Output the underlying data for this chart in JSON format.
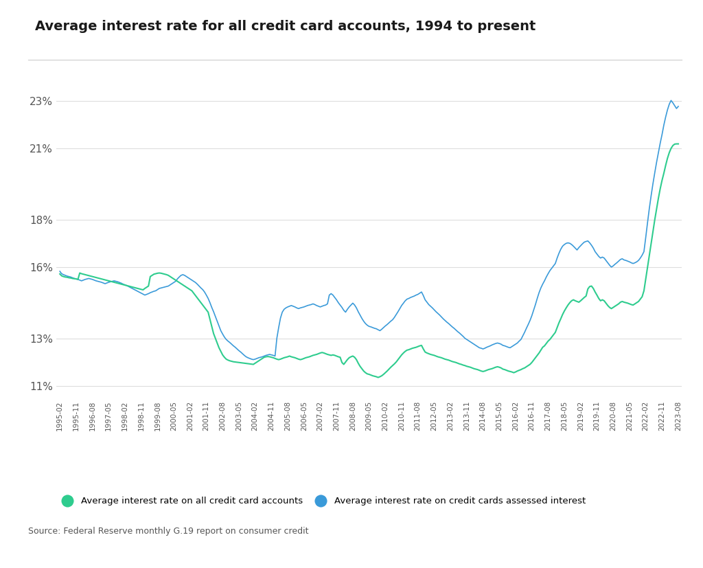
{
  "title": "Average interest rate for all credit card accounts, 1994 to present",
  "source_text": "Source: Federal Reserve monthly G.19 report on consumer credit",
  "legend_label_green": "Average interest rate on all credit card accounts",
  "legend_label_blue": "Average interest rate on credit cards assessed interest",
  "color_green": "#2ecc8e",
  "color_blue": "#3a9ad9",
  "background_color": "#ffffff",
  "ylim": [
    10.5,
    24.5
  ],
  "yticks": [
    11,
    13,
    16,
    18,
    21,
    23
  ],
  "ytick_labels": [
    "11%",
    "13%",
    "16%",
    "18%",
    "21%",
    "23%"
  ],
  "x_labels": [
    "1995-02",
    "1995-11",
    "1996-08",
    "1997-05",
    "1998-02",
    "1998-11",
    "1999-08",
    "2000-05",
    "2001-02",
    "2001-11",
    "2002-08",
    "2003-05",
    "2004-02",
    "2004-11",
    "2005-08",
    "2006-05",
    "2007-02",
    "2007-11",
    "2008-08",
    "2009-05",
    "2010-02",
    "2010-11",
    "2011-08",
    "2012-05",
    "2013-02",
    "2013-11",
    "2014-08",
    "2015-05",
    "2016-02",
    "2016-11",
    "2017-08",
    "2018-05",
    "2019-02",
    "2019-11",
    "2020-08",
    "2021-05",
    "2022-02",
    "2022-11",
    "2023-08"
  ],
  "all_accts_months": [
    15.71,
    15.63,
    15.6,
    15.58,
    15.57,
    15.55,
    15.54,
    15.52,
    15.51,
    15.5,
    15.48,
    15.75,
    15.72,
    15.7,
    15.68,
    15.66,
    15.64,
    15.62,
    15.6,
    15.58,
    15.56,
    15.54,
    15.52,
    15.5,
    15.48,
    15.46,
    15.44,
    15.42,
    15.4,
    15.38,
    15.36,
    15.34,
    15.32,
    15.3,
    15.28,
    15.26,
    15.24,
    15.22,
    15.2,
    15.18,
    15.16,
    15.14,
    15.12,
    15.1,
    15.08,
    15.06,
    15.04,
    15.1,
    15.15,
    15.2,
    15.6,
    15.65,
    15.7,
    15.72,
    15.74,
    15.75,
    15.74,
    15.72,
    15.7,
    15.68,
    15.65,
    15.6,
    15.55,
    15.5,
    15.45,
    15.4,
    15.35,
    15.3,
    15.25,
    15.2,
    15.15,
    15.1,
    15.05,
    15.0,
    14.9,
    14.8,
    14.7,
    14.6,
    14.5,
    14.4,
    14.3,
    14.2,
    14.1,
    13.8,
    13.5,
    13.2,
    13.0,
    12.8,
    12.6,
    12.45,
    12.3,
    12.2,
    12.12,
    12.08,
    12.05,
    12.03,
    12.01,
    12.0,
    11.99,
    11.98,
    11.97,
    11.96,
    11.95,
    11.94,
    11.93,
    11.92,
    11.91,
    11.9,
    11.95,
    12.0,
    12.05,
    12.1,
    12.15,
    12.2,
    12.22,
    12.23,
    12.22,
    12.2,
    12.18,
    12.15,
    12.12,
    12.1,
    12.12,
    12.15,
    12.18,
    12.2,
    12.22,
    12.25,
    12.22,
    12.2,
    12.18,
    12.15,
    12.12,
    12.1,
    12.12,
    12.15,
    12.18,
    12.2,
    12.22,
    12.25,
    12.28,
    12.3,
    12.32,
    12.35,
    12.38,
    12.4,
    12.38,
    12.35,
    12.32,
    12.3,
    12.28,
    12.3,
    12.28,
    12.25,
    12.22,
    12.2,
    11.98,
    11.9,
    12.0,
    12.1,
    12.18,
    12.22,
    12.25,
    12.2,
    12.1,
    11.95,
    11.82,
    11.72,
    11.62,
    11.55,
    11.5,
    11.48,
    11.45,
    11.42,
    11.4,
    11.38,
    11.35,
    11.38,
    11.42,
    11.48,
    11.55,
    11.62,
    11.7,
    11.78,
    11.85,
    11.92,
    12.0,
    12.1,
    12.2,
    12.3,
    12.38,
    12.45,
    12.5,
    12.52,
    12.55,
    12.58,
    12.6,
    12.62,
    12.65,
    12.68,
    12.7,
    12.55,
    12.42,
    12.38,
    12.35,
    12.32,
    12.3,
    12.28,
    12.25,
    12.22,
    12.2,
    12.18,
    12.15,
    12.12,
    12.1,
    12.08,
    12.05,
    12.02,
    12.0,
    11.98,
    11.95,
    11.92,
    11.9,
    11.87,
    11.85,
    11.82,
    11.8,
    11.78,
    11.75,
    11.72,
    11.7,
    11.68,
    11.65,
    11.62,
    11.6,
    11.62,
    11.65,
    11.68,
    11.7,
    11.72,
    11.75,
    11.78,
    11.8,
    11.78,
    11.75,
    11.7,
    11.68,
    11.65,
    11.62,
    11.6,
    11.58,
    11.55,
    11.58,
    11.62,
    11.65,
    11.68,
    11.72,
    11.75,
    11.8,
    11.85,
    11.9,
    11.98,
    12.08,
    12.18,
    12.28,
    12.38,
    12.5,
    12.62,
    12.68,
    12.78,
    12.88,
    12.95,
    13.05,
    13.15,
    13.25,
    13.45,
    13.65,
    13.82,
    14.0,
    14.15,
    14.28,
    14.4,
    14.5,
    14.58,
    14.62,
    14.58,
    14.55,
    14.52,
    14.58,
    14.65,
    14.72,
    14.78,
    15.08,
    15.18,
    15.2,
    15.1,
    14.95,
    14.82,
    14.68,
    14.58,
    14.62,
    14.58,
    14.48,
    14.38,
    14.3,
    14.25,
    14.3,
    14.35,
    14.4,
    14.45,
    14.52,
    14.55,
    14.52,
    14.5,
    14.48,
    14.45,
    14.42,
    14.4,
    14.45,
    14.5,
    14.55,
    14.65,
    14.75,
    15.0,
    15.5,
    16.0,
    16.5,
    17.0,
    17.5,
    18.0,
    18.45,
    18.9,
    19.3,
    19.65,
    19.95,
    20.28,
    20.58,
    20.82,
    21.0,
    21.12,
    21.18,
    21.19,
    21.19
  ],
  "assessed_months": [
    15.82,
    15.72,
    15.68,
    15.65,
    15.62,
    15.6,
    15.58,
    15.55,
    15.52,
    15.5,
    15.48,
    15.45,
    15.42,
    15.45,
    15.48,
    15.5,
    15.52,
    15.5,
    15.48,
    15.45,
    15.42,
    15.4,
    15.38,
    15.36,
    15.33,
    15.3,
    15.33,
    15.36,
    15.38,
    15.4,
    15.42,
    15.4,
    15.38,
    15.35,
    15.32,
    15.28,
    15.25,
    15.22,
    15.18,
    15.14,
    15.1,
    15.06,
    15.02,
    14.98,
    14.94,
    14.9,
    14.86,
    14.82,
    14.85,
    14.88,
    14.92,
    14.95,
    14.98,
    15.0,
    15.05,
    15.1,
    15.12,
    15.14,
    15.16,
    15.18,
    15.2,
    15.25,
    15.3,
    15.35,
    15.4,
    15.5,
    15.58,
    15.65,
    15.68,
    15.65,
    15.6,
    15.55,
    15.5,
    15.45,
    15.4,
    15.35,
    15.28,
    15.2,
    15.12,
    15.05,
    14.95,
    14.82,
    14.68,
    14.5,
    14.3,
    14.12,
    13.92,
    13.72,
    13.52,
    13.32,
    13.18,
    13.05,
    12.95,
    12.88,
    12.82,
    12.75,
    12.68,
    12.62,
    12.55,
    12.48,
    12.42,
    12.35,
    12.28,
    12.22,
    12.18,
    12.15,
    12.12,
    12.1,
    12.12,
    12.15,
    12.18,
    12.2,
    12.22,
    12.25,
    12.28,
    12.3,
    12.32,
    12.3,
    12.28,
    12.25,
    13.0,
    13.45,
    13.85,
    14.1,
    14.22,
    14.28,
    14.32,
    14.35,
    14.38,
    14.35,
    14.32,
    14.28,
    14.25,
    14.28,
    14.3,
    14.32,
    14.35,
    14.38,
    14.4,
    14.42,
    14.45,
    14.42,
    14.38,
    14.35,
    14.32,
    14.35,
    14.38,
    14.4,
    14.45,
    14.82,
    14.88,
    14.82,
    14.72,
    14.62,
    14.5,
    14.4,
    14.3,
    14.18,
    14.1,
    14.22,
    14.32,
    14.4,
    14.48,
    14.4,
    14.28,
    14.12,
    13.98,
    13.84,
    13.72,
    13.62,
    13.55,
    13.5,
    13.48,
    13.45,
    13.42,
    13.4,
    13.36,
    13.32,
    13.38,
    13.45,
    13.52,
    13.58,
    13.65,
    13.72,
    13.78,
    13.88,
    14.0,
    14.12,
    14.25,
    14.38,
    14.48,
    14.58,
    14.65,
    14.68,
    14.72,
    14.75,
    14.78,
    14.82,
    14.85,
    14.9,
    14.95,
    14.8,
    14.62,
    14.52,
    14.42,
    14.35,
    14.28,
    14.2,
    14.12,
    14.05,
    13.98,
    13.9,
    13.82,
    13.75,
    13.68,
    13.62,
    13.55,
    13.48,
    13.42,
    13.35,
    13.28,
    13.22,
    13.15,
    13.08,
    13.0,
    12.95,
    12.9,
    12.85,
    12.8,
    12.75,
    12.7,
    12.65,
    12.6,
    12.58,
    12.55,
    12.58,
    12.62,
    12.65,
    12.68,
    12.72,
    12.75,
    12.78,
    12.8,
    12.78,
    12.75,
    12.7,
    12.68,
    12.65,
    12.62,
    12.6,
    12.65,
    12.7,
    12.75,
    12.8,
    12.88,
    12.95,
    13.1,
    13.25,
    13.42,
    13.58,
    13.75,
    13.95,
    14.18,
    14.42,
    14.68,
    14.92,
    15.12,
    15.28,
    15.42,
    15.58,
    15.72,
    15.85,
    15.95,
    16.05,
    16.15,
    16.38,
    16.58,
    16.75,
    16.88,
    16.95,
    17.0,
    17.02,
    17.0,
    16.95,
    16.88,
    16.8,
    16.72,
    16.82,
    16.9,
    16.98,
    17.05,
    17.08,
    17.1,
    17.02,
    16.92,
    16.8,
    16.65,
    16.55,
    16.45,
    16.38,
    16.42,
    16.38,
    16.28,
    16.18,
    16.08,
    16.0,
    16.05,
    16.12,
    16.18,
    16.25,
    16.32,
    16.35,
    16.3,
    16.28,
    16.25,
    16.22,
    16.18,
    16.15,
    16.18,
    16.22,
    16.28,
    16.38,
    16.5,
    16.65,
    17.25,
    17.88,
    18.48,
    19.02,
    19.52,
    19.98,
    20.42,
    20.82,
    21.22,
    21.58,
    21.98,
    22.32,
    22.62,
    22.86,
    23.02,
    22.92,
    22.8,
    22.68,
    22.77
  ]
}
